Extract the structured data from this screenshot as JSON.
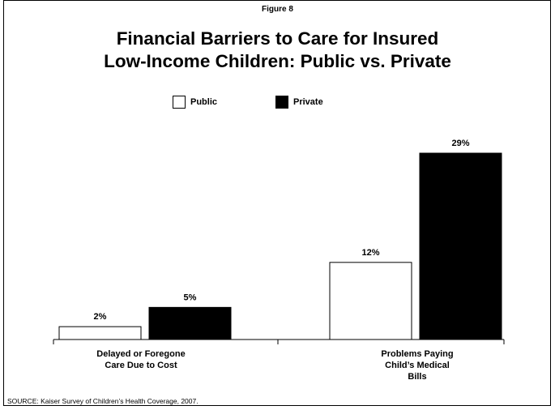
{
  "figure_label": "Figure 8",
  "source": "SOURCE:  Kaiser Survey of Children’s Health Coverage, 2007.",
  "chart_data": {
    "type": "bar",
    "title": "Financial Barriers to Care for Insured\nLow-Income Children:  Public vs. Private",
    "categories": [
      "Delayed or Foregone\nCare Due to Cost",
      "Problems Paying\nChild’s Medical\nBills"
    ],
    "series": [
      {
        "name": "Public",
        "values": [
          2,
          12
        ],
        "labels": [
          "2%",
          "12%"
        ],
        "color": "#ffffff"
      },
      {
        "name": "Private",
        "values": [
          5,
          29
        ],
        "labels": [
          "5%",
          "29%"
        ],
        "color": "#000000"
      }
    ],
    "ylim": [
      0,
      35
    ],
    "grid": false,
    "legend": "top-center"
  }
}
